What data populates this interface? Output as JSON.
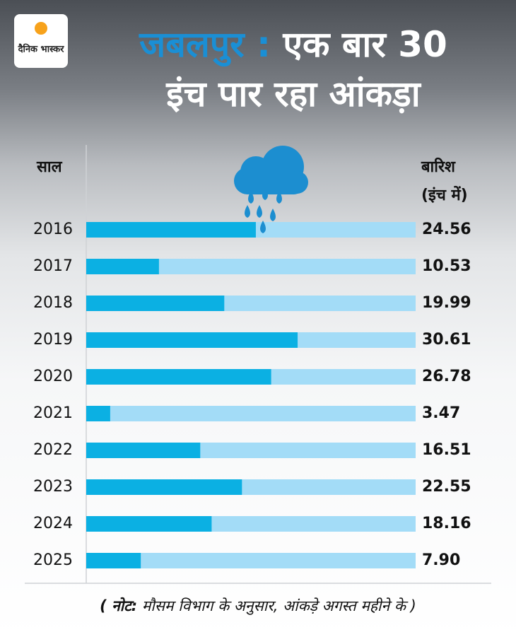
{
  "chart_data": {
    "type": "bar",
    "orientation": "horizontal",
    "logo": "दैनिक भास्कर",
    "title_highlight": "जबलपुर :",
    "title_line1": "एक बार 30",
    "title_line2": "इंच पार रहा आंकड़ा",
    "category_header": "साल",
    "value_header_line1": "बारिश",
    "value_header_line2": "(इंच में)",
    "categories": [
      "2016",
      "2017",
      "2018",
      "2019",
      "2020",
      "2021",
      "2022",
      "2023",
      "2024",
      "2025"
    ],
    "values": [
      24.56,
      10.53,
      19.99,
      30.61,
      26.78,
      3.47,
      16.51,
      22.55,
      18.16,
      7.9
    ],
    "value_labels": [
      "24.56",
      "10.53",
      "19.99",
      "30.61",
      "26.78",
      "3.47",
      "16.51",
      "22.55",
      "18.16",
      "7.90"
    ],
    "color": "#0bb0e3",
    "track_color": "#a3dcf7",
    "xlim": [
      0,
      47.7
    ],
    "note_label": "( नोट:",
    "note": "मौसम विभाग के अनुसार, आंकड़े अगस्त महीने के )"
  }
}
